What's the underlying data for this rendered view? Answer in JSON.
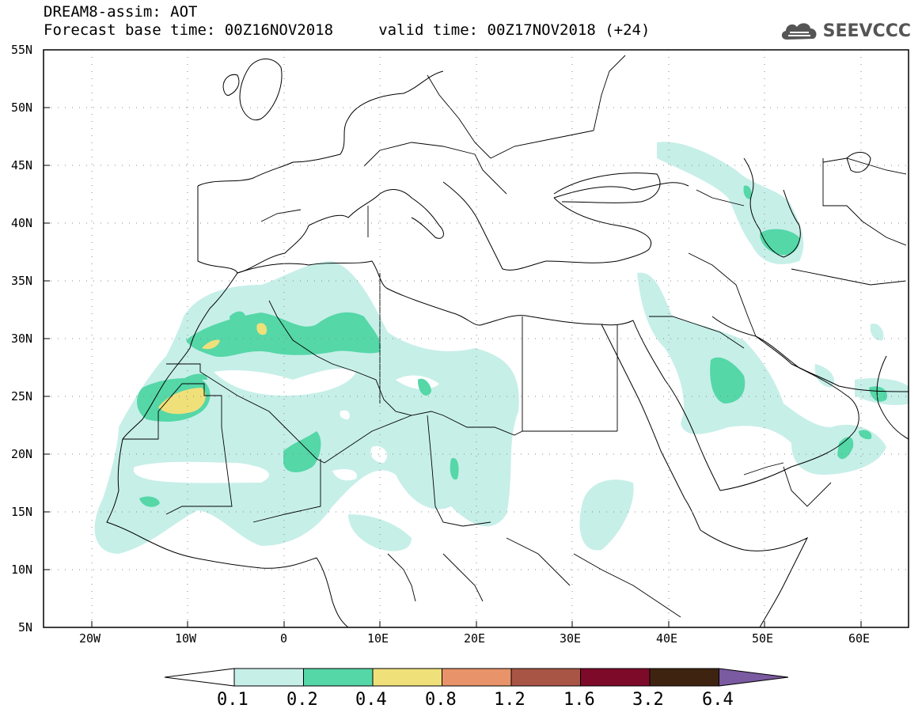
{
  "header": {
    "title": "DREAM8-assim: AOT",
    "subtitle": "Forecast base time: 00Z16NOV2018     valid time: 00Z17NOV2018 (+24)"
  },
  "logo": {
    "text": "SEEVCCC",
    "icon": "cloud-icon"
  },
  "map": {
    "lat_labels": [
      "55N",
      "50N",
      "45N",
      "40N",
      "35N",
      "30N",
      "25N",
      "20N",
      "15N",
      "10N",
      "5N"
    ],
    "lon_labels": [
      "20W",
      "10W",
      "0",
      "10E",
      "20E",
      "30E",
      "40E",
      "50E",
      "60E"
    ],
    "extent": {
      "lon": [
        -25,
        65
      ],
      "lat": [
        5,
        55
      ]
    }
  },
  "colorbar": {
    "levels": [
      "0.1",
      "0.2",
      "0.4",
      "0.8",
      "1.2",
      "1.6",
      "3.2",
      "6.4"
    ],
    "colors": [
      "#ffffff",
      "#c6efe8",
      "#55d7a8",
      "#f0e07a",
      "#e8936a",
      "#a85545",
      "#7e0a2a",
      "#3e2410",
      "#7a5aa0"
    ]
  }
}
